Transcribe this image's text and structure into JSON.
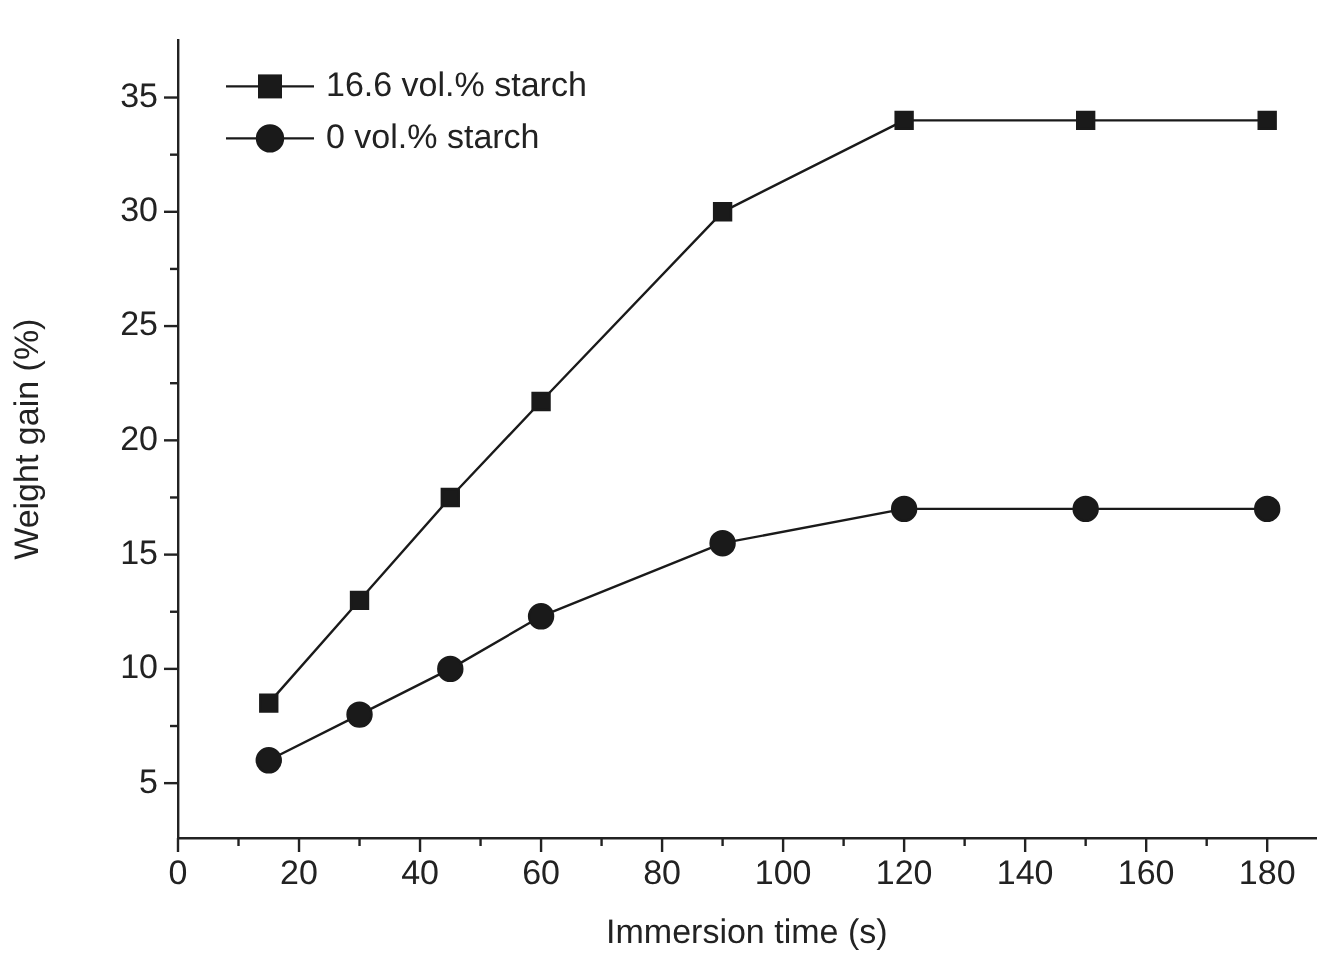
{
  "chart_data": {
    "type": "line",
    "xlabel": "Immersion time (s)",
    "ylabel": "Weight gain (%)",
    "x": [
      15,
      30,
      45,
      60,
      90,
      120,
      150,
      180
    ],
    "series": [
      {
        "name": "16.6 vol.% starch",
        "color": "#1a1a1a",
        "marker": "square",
        "values": [
          8.5,
          13,
          17.5,
          21.7,
          30,
          34,
          34,
          34
        ]
      },
      {
        "name": "0 vol.% starch",
        "color": "#1a1a1a",
        "marker": "circle",
        "values": [
          6,
          8,
          10,
          12.3,
          15.5,
          17,
          17,
          17
        ]
      }
    ],
    "xlim": [
      0,
      188
    ],
    "ylim": [
      2.6,
      37.5
    ],
    "xticks": [
      0,
      {
        "value": 10,
        "label": null
      },
      20,
      {
        "value": 30,
        "label": null
      },
      40,
      {
        "value": 50,
        "label": null
      },
      60,
      {
        "value": 70,
        "label": null
      },
      80,
      {
        "value": 90,
        "label": null
      },
      100,
      {
        "value": 110,
        "label": null
      },
      120,
      {
        "value": 130,
        "label": null
      },
      140,
      {
        "value": 150,
        "label": null
      },
      160,
      {
        "value": 170,
        "label": null
      },
      180
    ],
    "yticks": [
      5,
      {
        "value": 7.5,
        "label": null
      },
      10,
      {
        "value": 12.5,
        "label": null
      },
      15,
      {
        "value": 17.5,
        "label": null
      },
      20,
      {
        "value": 22.5,
        "label": null
      },
      25,
      {
        "value": 27.5,
        "label": null
      },
      30,
      {
        "value": 32.5,
        "label": null
      },
      35
    ],
    "grid": false,
    "legend": "top left",
    "line_style": "solid"
  }
}
